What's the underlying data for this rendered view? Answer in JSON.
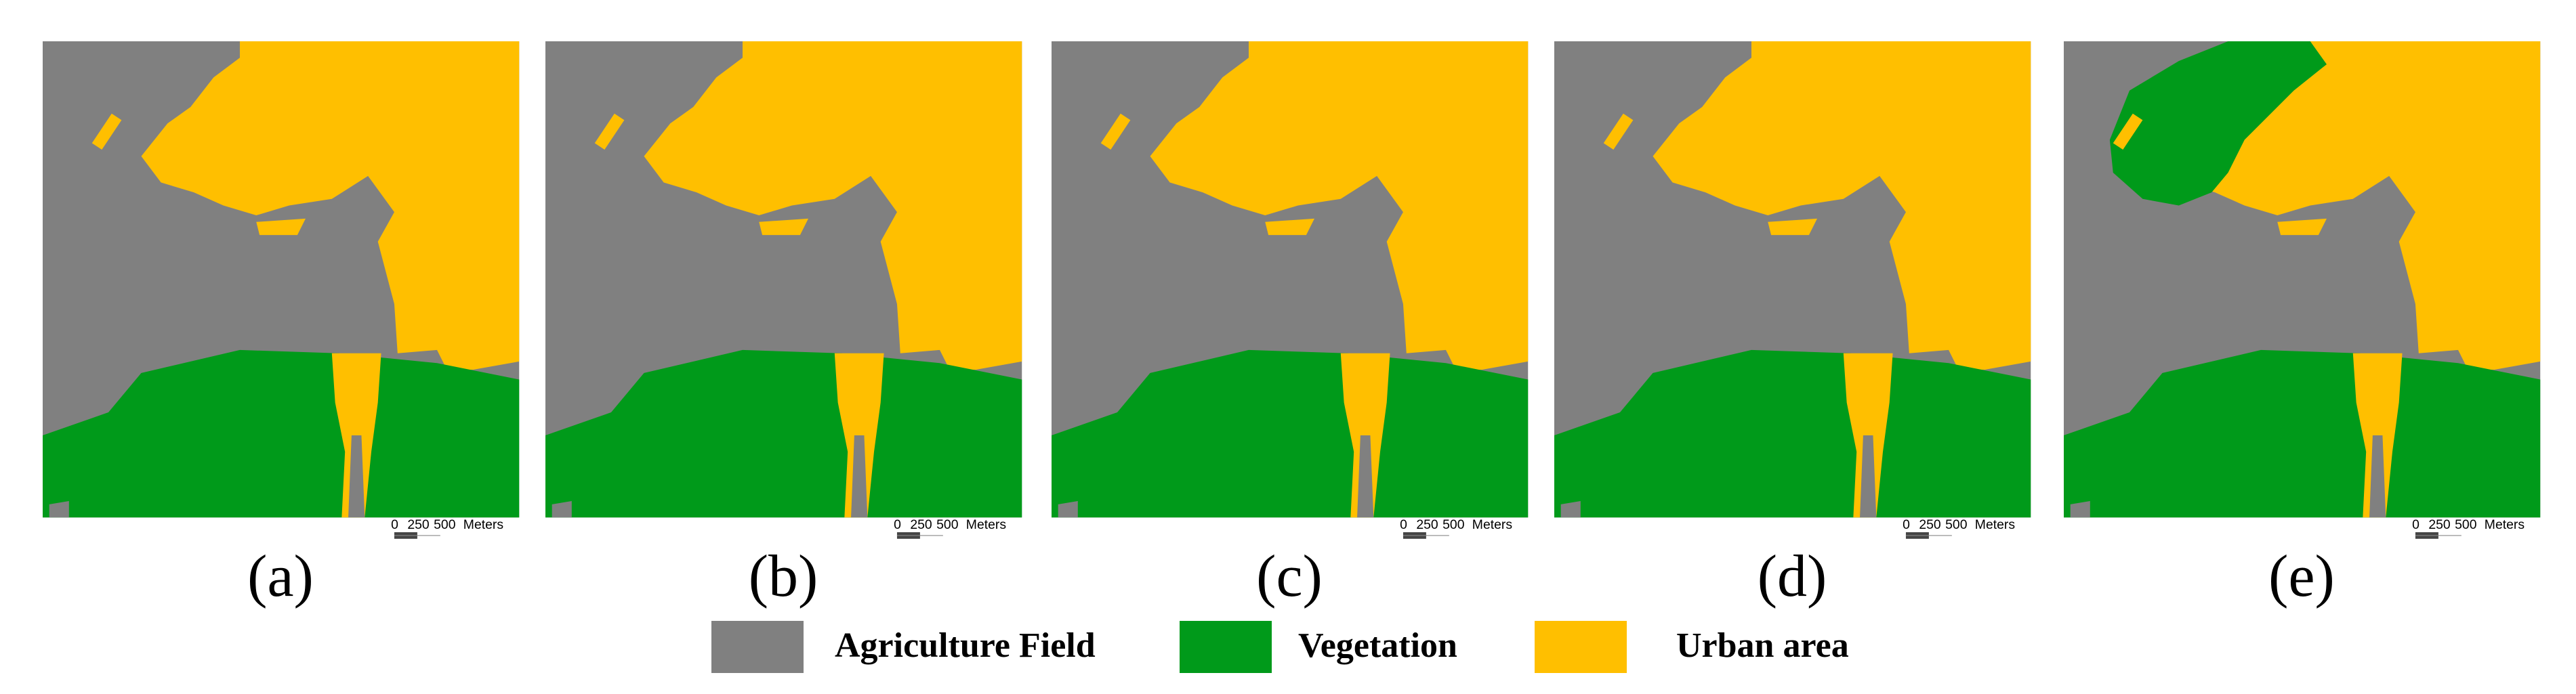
{
  "panels": [
    {
      "label": "(a)"
    },
    {
      "label": "(b)"
    },
    {
      "label": "(c)"
    },
    {
      "label": "(d)"
    },
    {
      "label": "(e)"
    }
  ],
  "scale_bar": {
    "ticks": [
      "0",
      "250",
      "500"
    ],
    "unit": "Meters"
  },
  "legend": [
    {
      "label": "Agriculture Field",
      "color": "#808080"
    },
    {
      "label": "Vegetation",
      "color": "#009a1a"
    },
    {
      "label": "Urban area",
      "color": "#ffbf00"
    }
  ]
}
